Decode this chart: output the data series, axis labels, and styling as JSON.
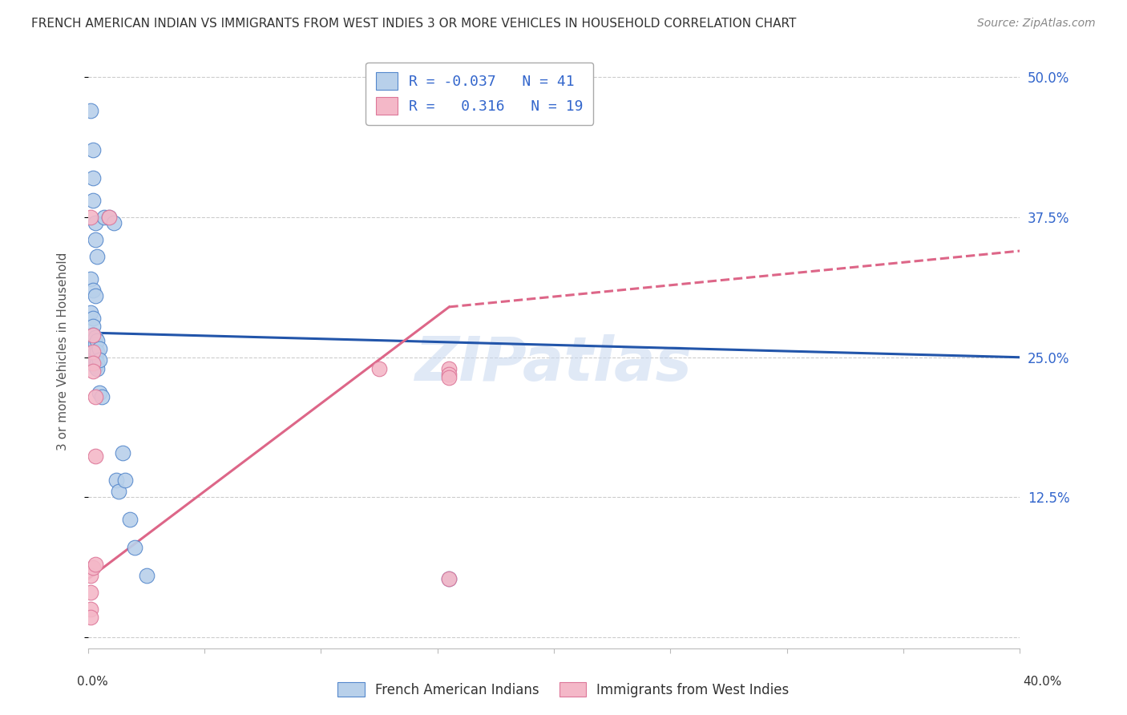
{
  "title": "FRENCH AMERICAN INDIAN VS IMMIGRANTS FROM WEST INDIES 3 OR MORE VEHICLES IN HOUSEHOLD CORRELATION CHART",
  "source": "Source: ZipAtlas.com",
  "ylabel": "3 or more Vehicles in Household",
  "blue_R": "-0.037",
  "blue_N": "41",
  "pink_R": "0.316",
  "pink_N": "19",
  "blue_color": "#b8d0ea",
  "blue_edge_color": "#5588cc",
  "blue_line_color": "#2255aa",
  "pink_color": "#f4b8c8",
  "pink_edge_color": "#dd7799",
  "pink_line_color": "#dd6688",
  "xmin": 0.0,
  "xmax": 0.4,
  "ymin": -0.01,
  "ymax": 0.52,
  "ytick_values": [
    0.0,
    0.125,
    0.25,
    0.375,
    0.5
  ],
  "ytick_labels": [
    "",
    "12.5%",
    "25.0%",
    "37.5%",
    "50.0%"
  ],
  "blue_scatter": [
    [
      0.001,
      0.47
    ],
    [
      0.002,
      0.435
    ],
    [
      0.002,
      0.41
    ],
    [
      0.002,
      0.39
    ],
    [
      0.003,
      0.37
    ],
    [
      0.003,
      0.355
    ],
    [
      0.004,
      0.34
    ],
    [
      0.007,
      0.375
    ],
    [
      0.001,
      0.32
    ],
    [
      0.002,
      0.31
    ],
    [
      0.003,
      0.305
    ],
    [
      0.009,
      0.375
    ],
    [
      0.011,
      0.37
    ],
    [
      0.001,
      0.29
    ],
    [
      0.002,
      0.285
    ],
    [
      0.002,
      0.278
    ],
    [
      0.002,
      0.27
    ],
    [
      0.002,
      0.265
    ],
    [
      0.003,
      0.268
    ],
    [
      0.003,
      0.262
    ],
    [
      0.003,
      0.255
    ],
    [
      0.003,
      0.25
    ],
    [
      0.003,
      0.248
    ],
    [
      0.003,
      0.245
    ],
    [
      0.003,
      0.242
    ],
    [
      0.004,
      0.265
    ],
    [
      0.004,
      0.255
    ],
    [
      0.004,
      0.245
    ],
    [
      0.004,
      0.24
    ],
    [
      0.005,
      0.258
    ],
    [
      0.005,
      0.248
    ],
    [
      0.005,
      0.218
    ],
    [
      0.006,
      0.215
    ],
    [
      0.012,
      0.14
    ],
    [
      0.013,
      0.13
    ],
    [
      0.015,
      0.165
    ],
    [
      0.016,
      0.14
    ],
    [
      0.018,
      0.105
    ],
    [
      0.02,
      0.08
    ],
    [
      0.025,
      0.055
    ],
    [
      0.155,
      0.052
    ]
  ],
  "pink_scatter": [
    [
      0.001,
      0.375
    ],
    [
      0.001,
      0.055
    ],
    [
      0.001,
      0.04
    ],
    [
      0.001,
      0.025
    ],
    [
      0.001,
      0.018
    ],
    [
      0.002,
      0.27
    ],
    [
      0.002,
      0.255
    ],
    [
      0.002,
      0.245
    ],
    [
      0.002,
      0.238
    ],
    [
      0.002,
      0.062
    ],
    [
      0.003,
      0.215
    ],
    [
      0.003,
      0.162
    ],
    [
      0.003,
      0.065
    ],
    [
      0.009,
      0.375
    ],
    [
      0.125,
      0.24
    ],
    [
      0.155,
      0.24
    ],
    [
      0.155,
      0.235
    ],
    [
      0.155,
      0.232
    ],
    [
      0.155,
      0.052
    ]
  ],
  "watermark": "ZIPatlas",
  "watermark_color": "#c8d8f0",
  "grid_color": "#cccccc"
}
